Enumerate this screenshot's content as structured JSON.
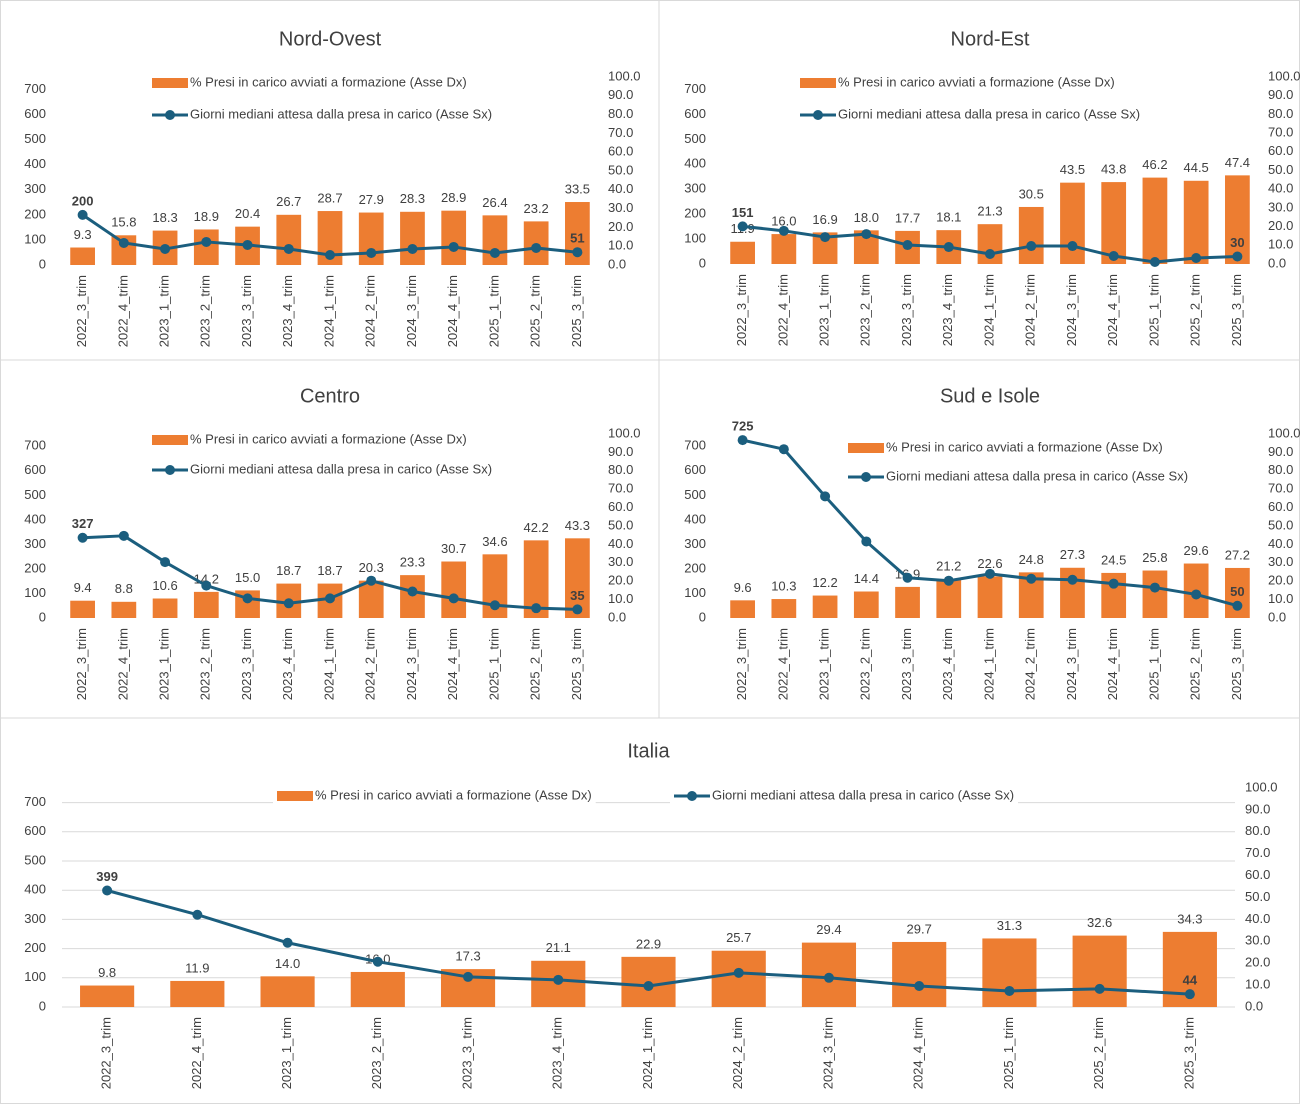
{
  "chart_data": [
    {
      "type": "combo",
      "title": "Nord-Ovest",
      "categories": [
        "2022_3_trim",
        "2022_4_trim",
        "2023_1_trim",
        "2023_2_trim",
        "2023_3_trim",
        "2023_4_trim",
        "2024_1_trim",
        "2024_2_trim",
        "2024_3_trim",
        "2024_4_trim",
        "2025_1_trim",
        "2025_2_trim",
        "2025_3_trim"
      ],
      "series": [
        {
          "name": "% Presi in carico avviati a formazione (Asse Dx)",
          "color": "#ed7d31",
          "axis": "y2",
          "values": [
            9.3,
            15.8,
            18.3,
            18.9,
            20.4,
            26.7,
            28.7,
            27.9,
            28.3,
            28.9,
            26.4,
            23.2,
            33.5
          ],
          "value_labels": [
            "9.3",
            "15.8",
            "18.3",
            "18.9",
            "20.4",
            "26.7",
            "28.7",
            "27.9",
            "28.3",
            "28.9",
            "26.4",
            "23.2",
            "33.5"
          ]
        },
        {
          "name": "Giorni mediani attesa dalla presa in carico (Asse Sx)",
          "color": "#1b5e7e",
          "values": [
            200,
            88,
            64,
            92,
            80,
            64,
            40,
            48,
            64,
            72,
            48,
            68,
            51
          ],
          "value_labels": [
            "200",
            null,
            null,
            null,
            null,
            null,
            null,
            null,
            null,
            null,
            null,
            null,
            "51"
          ]
        }
      ],
      "ylim": [
        0,
        750
      ],
      "yticks": [
        0,
        100,
        200,
        300,
        400,
        500,
        600,
        700
      ],
      "y2lim": [
        0,
        100
      ],
      "y2ticks": [
        {
          "value": 0,
          "label": "0.0"
        },
        {
          "value": 10,
          "label": "10.0"
        },
        {
          "value": 20,
          "label": "20.0"
        },
        {
          "value": 30,
          "label": "30.0"
        },
        {
          "value": 40,
          "label": "40.0"
        },
        {
          "value": 50,
          "label": "50.0"
        },
        {
          "value": 60,
          "label": "60.0"
        },
        {
          "value": 70,
          "label": "70.0"
        },
        {
          "value": 80,
          "label": "80.0"
        },
        {
          "value": 90,
          "label": "90.0"
        },
        {
          "value": 100,
          "label": "100.0"
        }
      ],
      "grid": false
    },
    {
      "type": "combo",
      "title": "Nord-Est",
      "categories": [
        "2022_3_trim",
        "2022_4_trim",
        "2023_1_trim",
        "2023_2_trim",
        "2023_3_trim",
        "2023_4_trim",
        "2024_1_trim",
        "2024_2_trim",
        "2024_3_trim",
        "2024_4_trim",
        "2025_1_trim",
        "2025_2_trim",
        "2025_3_trim"
      ],
      "series": [
        {
          "name": "% Presi in carico avviati a formazione (Asse Dx)",
          "color": "#ed7d31",
          "axis": "y2",
          "values": [
            11.9,
            16.0,
            16.9,
            18.0,
            17.7,
            18.1,
            21.3,
            30.5,
            43.5,
            43.8,
            46.2,
            44.5,
            47.4
          ],
          "value_labels": [
            "11.9",
            "16.0",
            "16.9",
            "18.0",
            "17.7",
            "18.1",
            "21.3",
            "30.5",
            "43.5",
            "43.8",
            "46.2",
            "44.5",
            "47.4"
          ]
        },
        {
          "name": "Giorni mediani attesa dalla presa in carico (Asse Sx)",
          "color": "#1b5e7e",
          "values": [
            151,
            133,
            108,
            120,
            76,
            68,
            40,
            72,
            72,
            32,
            8,
            24,
            30
          ],
          "value_labels": [
            "151",
            null,
            null,
            null,
            null,
            null,
            null,
            null,
            null,
            null,
            null,
            null,
            "30"
          ]
        }
      ],
      "ylim": [
        0,
        750
      ],
      "yticks": [
        0,
        100,
        200,
        300,
        400,
        500,
        600,
        700
      ],
      "y2lim": [
        0,
        100
      ],
      "y2ticks": [
        {
          "value": 0,
          "label": "0.0"
        },
        {
          "value": 10,
          "label": "10.0"
        },
        {
          "value": 20,
          "label": "20.0"
        },
        {
          "value": 30,
          "label": "30.0"
        },
        {
          "value": 40,
          "label": "40.0"
        },
        {
          "value": 50,
          "label": "50.0"
        },
        {
          "value": 60,
          "label": "60.0"
        },
        {
          "value": 70,
          "label": "70.0"
        },
        {
          "value": 80,
          "label": "80.0"
        },
        {
          "value": 90,
          "label": "90.0"
        },
        {
          "value": 100,
          "label": "100.0"
        }
      ],
      "grid": false
    },
    {
      "type": "combo",
      "title": "Centro",
      "categories": [
        "2022_3_trim",
        "2022_4_trim",
        "2023_1_trim",
        "2023_2_trim",
        "2023_3_trim",
        "2023_4_trim",
        "2024_1_trim",
        "2024_2_trim",
        "2024_3_trim",
        "2024_4_trim",
        "2025_1_trim",
        "2025_2_trim",
        "2025_3_trim"
      ],
      "series": [
        {
          "name": "% Presi in carico avviati a formazione (Asse Dx)",
          "color": "#ed7d31",
          "axis": "y2",
          "values": [
            9.4,
            8.8,
            10.6,
            14.2,
            15.0,
            18.7,
            18.7,
            20.3,
            23.3,
            30.7,
            34.6,
            42.2,
            43.3
          ],
          "value_labels": [
            "9.4",
            "8.8",
            "10.6",
            "14.2",
            "15.0",
            "18.7",
            "18.7",
            "20.3",
            "23.3",
            "30.7",
            "34.6",
            "42.2",
            "43.3"
          ]
        },
        {
          "name": "Giorni mediani attesa dalla presa in carico (Asse Sx)",
          "color": "#1b5e7e",
          "values": [
            327,
            335,
            228,
            132,
            80,
            60,
            80,
            152,
            108,
            80,
            52,
            40,
            35
          ],
          "value_labels": [
            "327",
            null,
            null,
            null,
            null,
            null,
            null,
            null,
            null,
            null,
            null,
            null,
            "35"
          ]
        }
      ],
      "ylim": [
        0,
        750
      ],
      "yticks": [
        0,
        100,
        200,
        300,
        400,
        500,
        600,
        700
      ],
      "y2lim": [
        0,
        100
      ],
      "y2ticks": [
        {
          "value": 0,
          "label": "0.0"
        },
        {
          "value": 10,
          "label": "10.0"
        },
        {
          "value": 20,
          "label": "20.0"
        },
        {
          "value": 30,
          "label": "30.0"
        },
        {
          "value": 40,
          "label": "40.0"
        },
        {
          "value": 50,
          "label": "50.0"
        },
        {
          "value": 60,
          "label": "60.0"
        },
        {
          "value": 70,
          "label": "70.0"
        },
        {
          "value": 80,
          "label": "80.0"
        },
        {
          "value": 90,
          "label": "90.0"
        },
        {
          "value": 100,
          "label": "100.0"
        }
      ],
      "grid": false
    },
    {
      "type": "combo",
      "title": "Sud e Isole",
      "categories": [
        "2022_3_trim",
        "2022_4_trim",
        "2023_1_trim",
        "2023_2_trim",
        "2023_3_trim",
        "2023_4_trim",
        "2024_1_trim",
        "2024_2_trim",
        "2024_3_trim",
        "2024_4_trim",
        "2025_1_trim",
        "2025_2_trim",
        "2025_3_trim"
      ],
      "series": [
        {
          "name": "% Presi in carico avviati a formazione (Asse Dx)",
          "color": "#ed7d31",
          "axis": "y2",
          "values": [
            9.6,
            10.3,
            12.2,
            14.4,
            16.9,
            21.2,
            22.6,
            24.8,
            27.3,
            24.5,
            25.8,
            29.6,
            27.2
          ],
          "value_labels": [
            "9.6",
            "10.3",
            "12.2",
            "14.4",
            "16.9",
            "21.2",
            "22.6",
            "24.8",
            "27.3",
            "24.5",
            "25.8",
            "29.6",
            "27.2"
          ]
        },
        {
          "name": "Giorni mediani attesa dalla presa in carico (Asse Sx)",
          "color": "#1b5e7e",
          "values": [
            725,
            688,
            496,
            312,
            164,
            152,
            180,
            160,
            156,
            140,
            124,
            96,
            50
          ],
          "value_labels": [
            "725",
            null,
            null,
            null,
            null,
            null,
            null,
            null,
            null,
            null,
            null,
            null,
            "50"
          ]
        }
      ],
      "ylim": [
        0,
        750
      ],
      "yticks": [
        0,
        100,
        200,
        300,
        400,
        500,
        600,
        700
      ],
      "y2lim": [
        0,
        100
      ],
      "y2ticks": [
        {
          "value": 0,
          "label": "0.0"
        },
        {
          "value": 10,
          "label": "10.0"
        },
        {
          "value": 20,
          "label": "20.0"
        },
        {
          "value": 30,
          "label": "30.0"
        },
        {
          "value": 40,
          "label": "40.0"
        },
        {
          "value": 50,
          "label": "50.0"
        },
        {
          "value": 60,
          "label": "60.0"
        },
        {
          "value": 70,
          "label": "70.0"
        },
        {
          "value": 80,
          "label": "80.0"
        },
        {
          "value": 90,
          "label": "90.0"
        },
        {
          "value": 100,
          "label": "100.0"
        }
      ],
      "grid": false
    },
    {
      "type": "combo",
      "title": "Italia",
      "categories": [
        "2022_3_trim",
        "2022_4_trim",
        "2023_1_trim",
        "2023_2_trim",
        "2023_3_trim",
        "2023_4_trim",
        "2024_1_trim",
        "2024_2_trim",
        "2024_3_trim",
        "2024_4_trim",
        "2025_1_trim",
        "2025_2_trim",
        "2025_3_trim"
      ],
      "series": [
        {
          "name": "% Presi in carico avviati a formazione (Asse Dx)",
          "color": "#ed7d31",
          "axis": "y2",
          "values": [
            9.8,
            11.9,
            14.0,
            16.0,
            17.3,
            21.1,
            22.9,
            25.7,
            29.4,
            29.7,
            31.3,
            32.6,
            34.3
          ],
          "value_labels": [
            "9.8",
            "11.9",
            "14.0",
            "16.0",
            "17.3",
            "21.1",
            "22.9",
            "25.7",
            "29.4",
            "29.7",
            "31.3",
            "32.6",
            "34.3"
          ]
        },
        {
          "name": "Giorni mediani attesa dalla presa in carico (Asse Sx)",
          "color": "#1b5e7e",
          "values": [
            399,
            316,
            220,
            155,
            103,
            93,
            72,
            117,
            100,
            72,
            55,
            62,
            44
          ],
          "value_labels": [
            "399",
            null,
            null,
            null,
            null,
            null,
            null,
            null,
            null,
            null,
            null,
            null,
            "44"
          ]
        }
      ],
      "ylim": [
        0,
        750
      ],
      "yticks": [
        0,
        100,
        200,
        300,
        400,
        500,
        600,
        700
      ],
      "y2lim": [
        0,
        100
      ],
      "y2ticks": [
        {
          "value": 0,
          "label": "0.0"
        },
        {
          "value": 10,
          "label": "10.0"
        },
        {
          "value": 20,
          "label": "20.0"
        },
        {
          "value": 30,
          "label": "30.0"
        },
        {
          "value": 40,
          "label": "40.0"
        },
        {
          "value": 50,
          "label": "50.0"
        },
        {
          "value": 60,
          "label": "60.0"
        },
        {
          "value": 70,
          "label": "70.0"
        },
        {
          "value": 80,
          "label": "80.0"
        },
        {
          "value": 90,
          "label": "90.0"
        },
        {
          "value": 100,
          "label": "100.0"
        }
      ],
      "grid": true
    }
  ]
}
